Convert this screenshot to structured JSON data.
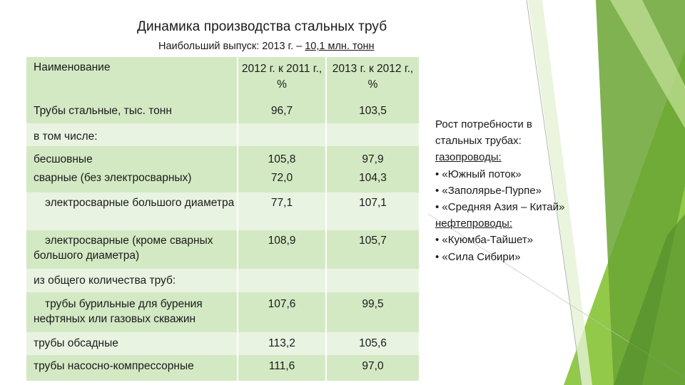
{
  "header": {
    "title": "Динамика производства стальных труб",
    "subtitle_prefix": "Наибольший выпуск: 2013 г. – ",
    "subtitle_highlight": "10,1 млн. тонн"
  },
  "table": {
    "columns": [
      "Наименование",
      "2012 г. к 2011 г., %",
      "2013 г. к 2012 г., %"
    ],
    "rows": [
      {
        "name": "Трубы стальные, тыс. тонн",
        "v2012": "96,7",
        "v2013": "103,5"
      },
      {
        "name": "в том числе:",
        "v2012": "",
        "v2013": ""
      },
      {
        "name": "бесшовные",
        "v2012": "105,8",
        "v2013": "97,9"
      },
      {
        "name": "сварные (без электросварных)",
        "v2012": "72,0",
        "v2013": "104,3"
      },
      {
        "name": "электросварные большого диаметра",
        "v2012": "77,1",
        "v2013": "107,1"
      },
      {
        "name": "электросварные (кроме сварных большого диаметра)",
        "v2012": "108,9",
        "v2013": "105,7"
      },
      {
        "name": "из общего количества труб:",
        "v2012": "",
        "v2013": ""
      },
      {
        "name": "трубы бурильные для бурения нефтяных или газовых скважин",
        "v2012": "107,6",
        "v2013": "99,5"
      },
      {
        "name": "трубы обсадные",
        "v2012": "113,2",
        "v2013": "105,6"
      },
      {
        "name": "трубы насосно-компрессорные",
        "v2012": "111,6",
        "v2013": "97,0"
      }
    ]
  },
  "sidebar": {
    "heading": "Рост потребности в стальных трубах:",
    "gas_label": "газопроводы:",
    "gas_items": [
      "«Южный поток»",
      "«Заполярье-Пурпе»",
      "«Средняя Азия – Китай»"
    ],
    "oil_label": "нефтепроводы:",
    "oil_items": [
      "«Куюмба-Тайшет»",
      "«Сила Сибири»"
    ]
  },
  "colors": {
    "table_dark": "#d3e9c3",
    "table_light": "#e9f3e2",
    "accent_green": "#8cc63f",
    "accent_dark_green": "#6a9a3a"
  }
}
